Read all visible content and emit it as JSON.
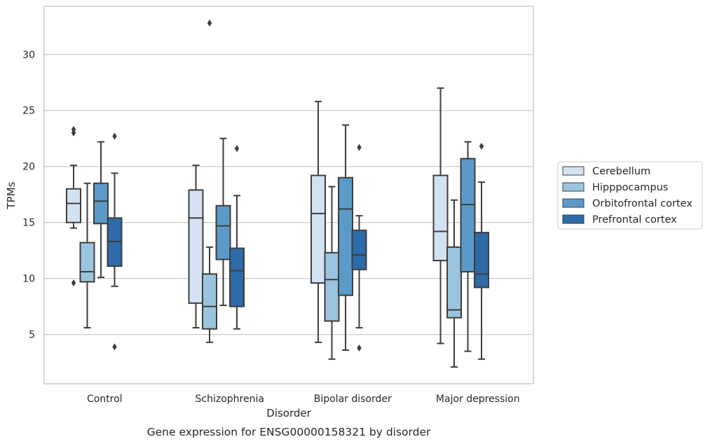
{
  "chart_data": {
    "type": "box",
    "caption": "Gene expression for ENSG00000158321 by disorder",
    "xlabel": "Disorder",
    "ylabel": "TPMs",
    "ylim": [
      0.6,
      34.3
    ],
    "yticks": [
      5,
      10,
      15,
      20,
      25,
      30
    ],
    "grid": "horizontal",
    "legend_position": "right",
    "categories": [
      "Control",
      "Schizophrenia",
      "Bipolar disorder",
      "Major depression"
    ],
    "series": [
      {
        "name": "Cerebellum",
        "color": "#d3e2f0",
        "boxes": [
          {
            "whisker_low": 14.5,
            "q1": 15.0,
            "median": 16.7,
            "q3": 18.0,
            "whisker_high": 20.1,
            "outliers": [
              23.3,
              23.0,
              9.6
            ]
          },
          {
            "whisker_low": 5.6,
            "q1": 7.8,
            "median": 15.4,
            "q3": 17.9,
            "whisker_high": 20.1,
            "outliers": []
          },
          {
            "whisker_low": 4.3,
            "q1": 9.6,
            "median": 15.8,
            "q3": 19.2,
            "whisker_high": 25.8,
            "outliers": []
          },
          {
            "whisker_low": 4.2,
            "q1": 11.6,
            "median": 14.2,
            "q3": 19.2,
            "whisker_high": 27.0,
            "outliers": []
          }
        ]
      },
      {
        "name": "Hipppocampus",
        "color": "#9bc4de",
        "boxes": [
          {
            "whisker_low": 5.6,
            "q1": 9.7,
            "median": 10.6,
            "q3": 13.2,
            "whisker_high": 18.5,
            "outliers": []
          },
          {
            "whisker_low": 4.3,
            "q1": 5.5,
            "median": 7.5,
            "q3": 10.4,
            "whisker_high": 12.8,
            "outliers": [
              32.8
            ]
          },
          {
            "whisker_low": 2.8,
            "q1": 6.2,
            "median": 9.9,
            "q3": 12.3,
            "whisker_high": 18.2,
            "outliers": []
          },
          {
            "whisker_low": 2.1,
            "q1": 6.5,
            "median": 7.2,
            "q3": 12.8,
            "whisker_high": 17.0,
            "outliers": []
          }
        ]
      },
      {
        "name": "Orbitofrontal cortex",
        "color": "#5b9ac8",
        "boxes": [
          {
            "whisker_low": 10.1,
            "q1": 14.9,
            "median": 16.9,
            "q3": 18.5,
            "whisker_high": 22.2,
            "outliers": []
          },
          {
            "whisker_low": 7.6,
            "q1": 11.7,
            "median": 14.7,
            "q3": 16.5,
            "whisker_high": 22.5,
            "outliers": []
          },
          {
            "whisker_low": 3.6,
            "q1": 8.5,
            "median": 16.2,
            "q3": 19.0,
            "whisker_high": 23.7,
            "outliers": []
          },
          {
            "whisker_low": 3.5,
            "q1": 10.6,
            "median": 16.6,
            "q3": 20.7,
            "whisker_high": 22.2,
            "outliers": []
          }
        ]
      },
      {
        "name": "Prefrontal cortex",
        "color": "#2e6ba9",
        "boxes": [
          {
            "whisker_low": 9.3,
            "q1": 11.1,
            "median": 13.3,
            "q3": 15.4,
            "whisker_high": 19.4,
            "outliers": [
              22.7,
              3.9
            ]
          },
          {
            "whisker_low": 5.5,
            "q1": 7.5,
            "median": 10.7,
            "q3": 12.7,
            "whisker_high": 17.4,
            "outliers": [
              21.6
            ]
          },
          {
            "whisker_low": 5.6,
            "q1": 10.8,
            "median": 12.1,
            "q3": 14.3,
            "whisker_high": 15.6,
            "outliers": [
              21.7,
              3.8
            ]
          },
          {
            "whisker_low": 2.8,
            "q1": 9.2,
            "median": 10.4,
            "q3": 14.1,
            "whisker_high": 18.6,
            "outliers": [
              21.8
            ]
          }
        ]
      }
    ]
  }
}
